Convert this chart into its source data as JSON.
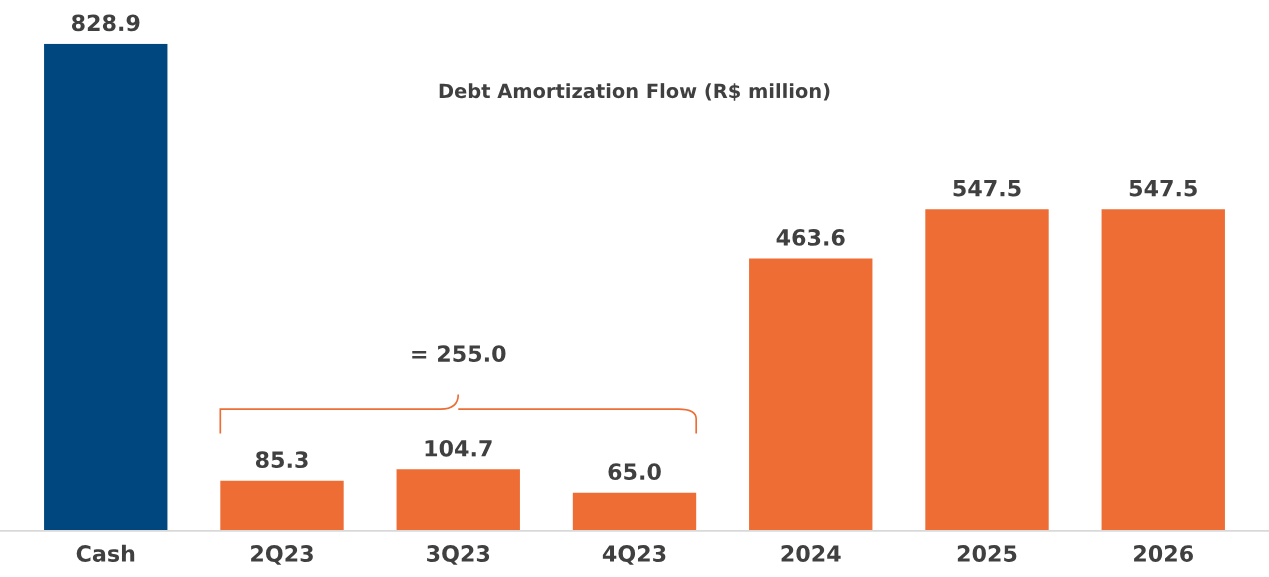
{
  "chart_data": {
    "type": "bar",
    "title": "Debt Amortization Flow (R$ million)",
    "categories": [
      "Cash",
      "2Q23",
      "3Q23",
      "4Q23",
      "2024",
      "2025",
      "2026"
    ],
    "values": [
      828.9,
      85.3,
      104.7,
      65.0,
      463.6,
      547.5,
      547.5
    ],
    "colors": [
      "#00467f",
      "#ed6d34",
      "#ed6d34",
      "#ed6d34",
      "#ed6d34",
      "#ed6d34",
      "#ed6d34"
    ],
    "value_labels": [
      "828.9",
      "85.3",
      "104.7",
      "65.0",
      "463.6",
      "547.5",
      "547.5"
    ],
    "annotations": [
      "= 255.0"
    ],
    "tick_labels": "x"
  }
}
